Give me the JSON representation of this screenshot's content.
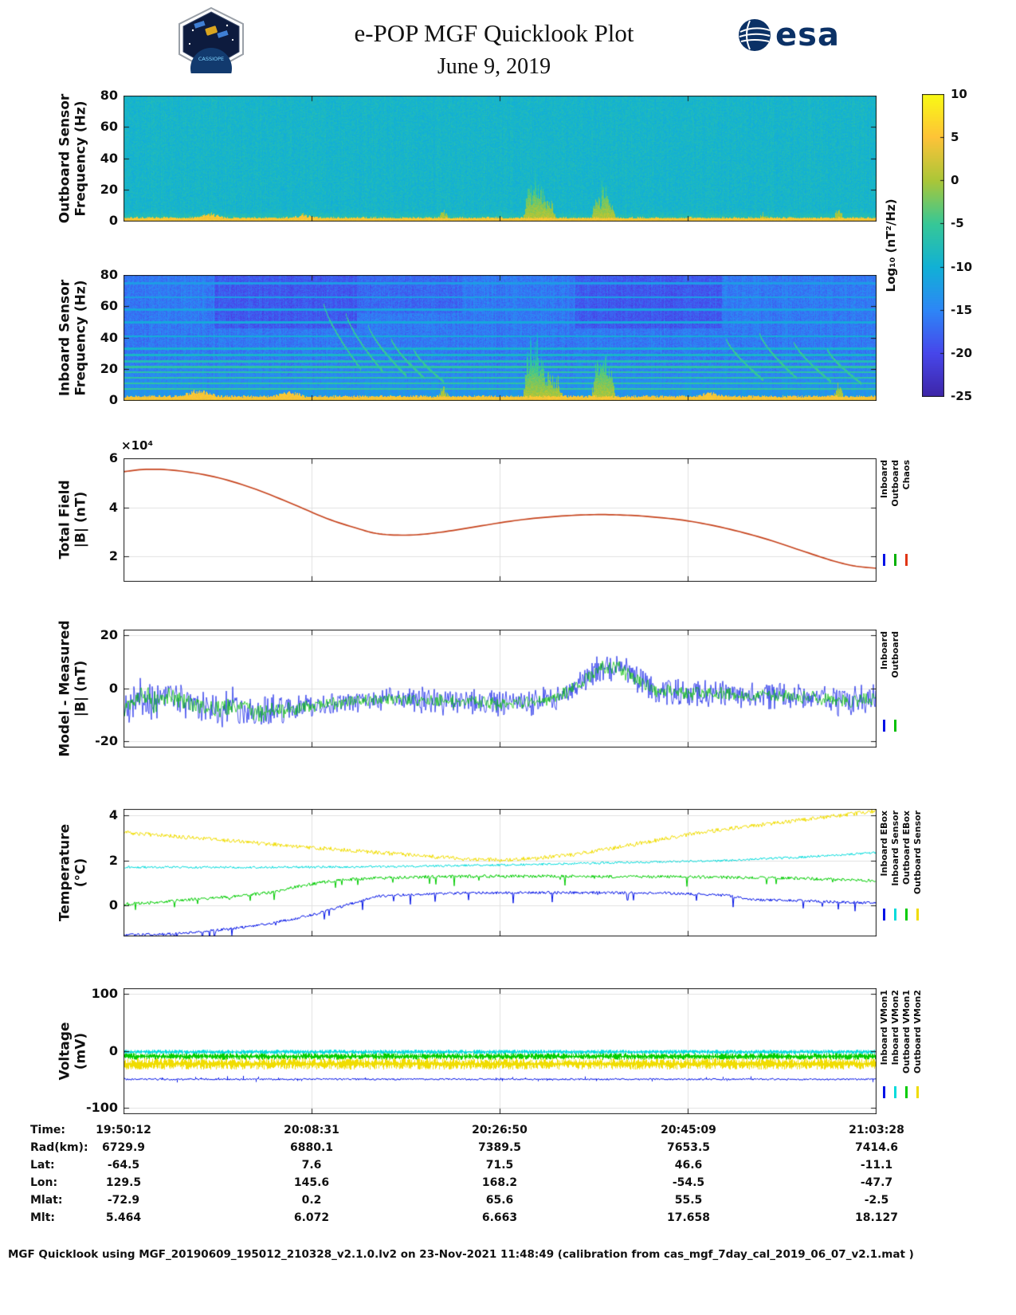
{
  "header": {
    "title": "e-POP MGF Quicklook Plot",
    "date": "June 9, 2019",
    "esa_logo_text": "esa",
    "mission_patch_text": "CASSIOPE"
  },
  "colorbar": {
    "label": "Log₁₀ (nT²/Hz)",
    "ticks": [
      10,
      5,
      0,
      -5,
      -10,
      -15,
      -20,
      -25
    ],
    "range": [
      -25,
      10
    ]
  },
  "panels": [
    {
      "id": "outboard-spectrogram",
      "ylabel1": "Outboard Sensor",
      "ylabel2": "Frequency (Hz)",
      "legend": []
    },
    {
      "id": "inboard-spectrogram",
      "ylabel1": "Inboard Sensor",
      "ylabel2": "Frequency (Hz)",
      "legend": []
    },
    {
      "id": "total-field",
      "ylabel1": "Total Field",
      "ylabel2": "|B| (nT)",
      "legend": [
        {
          "name": "Inboard",
          "color": "#0012e6"
        },
        {
          "name": "Outboard",
          "color": "#00b000"
        },
        {
          "name": "Chaos",
          "color": "#e03515"
        }
      ]
    },
    {
      "id": "model-measured",
      "ylabel1": "Model - Measured",
      "ylabel2": "|B| (nT)",
      "legend": [
        {
          "name": "Inboard",
          "color": "#0012e6"
        },
        {
          "name": "Outboard",
          "color": "#00c000"
        }
      ]
    },
    {
      "id": "temperature",
      "ylabel1": "Temperature",
      "ylabel2": "(°C)",
      "legend": [
        {
          "name": "Inboard EBox",
          "color": "#0012e6"
        },
        {
          "name": "Inboard Sensor",
          "color": "#00dbdb"
        },
        {
          "name": "Outboard EBox",
          "color": "#00cc00"
        },
        {
          "name": "Outboard Sensor",
          "color": "#f0dc00"
        }
      ]
    },
    {
      "id": "voltage",
      "ylabel1": "Voltage",
      "ylabel2": "(mV)",
      "legend": [
        {
          "name": "Inboard VMon1",
          "color": "#0012e6"
        },
        {
          "name": "Inboard VMon2",
          "color": "#00dbdb"
        },
        {
          "name": "Outboard VMon1",
          "color": "#00cc00"
        },
        {
          "name": "Outboard VMon2",
          "color": "#f0dc00"
        }
      ]
    }
  ],
  "chart_data": [
    {
      "id": "outboard-spectrogram",
      "type": "heatmap",
      "ylabel": "Outboard Sensor Frequency (Hz)",
      "ylim": [
        0,
        80
      ],
      "yticks": [
        0,
        20,
        40,
        60,
        80
      ],
      "clim": [
        -25,
        10
      ],
      "value_label": "Log₁₀ (nT²/Hz)",
      "background_level": -9,
      "background_noise": 1.6,
      "column_jitter": 0.5,
      "lowfreq_rise": {
        "hz": 6,
        "per_hz": 0.55
      },
      "bottom_band": {
        "hz": 2.2,
        "level": 5
      },
      "bottom_bumps": [
        {
          "x": 0.115,
          "hz": 4
        },
        {
          "x": 0.24,
          "hz": 3.5
        }
      ],
      "bursts": [
        {
          "x": 0.115,
          "max_hz": 7
        },
        {
          "x": 0.24,
          "max_hz": 6
        },
        {
          "x": 0.425,
          "max_hz": 8
        },
        {
          "x": 0.54,
          "max_hz": 30
        },
        {
          "x": 0.548,
          "max_hz": 38
        },
        {
          "x": 0.556,
          "max_hz": 26
        },
        {
          "x": 0.566,
          "max_hz": 18
        },
        {
          "x": 0.63,
          "max_hz": 22
        },
        {
          "x": 0.638,
          "max_hz": 30
        },
        {
          "x": 0.646,
          "max_hz": 16
        },
        {
          "x": 0.85,
          "max_hz": 6
        },
        {
          "x": 0.95,
          "max_hz": 9
        }
      ],
      "seed": 7
    },
    {
      "id": "inboard-spectrogram",
      "type": "heatmap",
      "ylabel": "Inboard Sensor Frequency (Hz)",
      "ylim": [
        0,
        80
      ],
      "yticks": [
        0,
        20,
        40,
        60,
        80
      ],
      "clim": [
        -25,
        10
      ],
      "background_level": -16,
      "background_noise": 1.8,
      "column_jitter": 1.0,
      "lowfreq_rise": {
        "hz": 28,
        "per_hz": 0.12
      },
      "dark_patches": [
        {
          "x0": 0.12,
          "x1": 0.31,
          "f0": 46,
          "f1": 80,
          "dv": -2.6
        },
        {
          "x0": 0.6,
          "x1": 0.795,
          "f0": 46,
          "f1": 80,
          "dv": -2.6
        },
        {
          "x0": 0.31,
          "x1": 0.45,
          "f0": 56,
          "f1": 80,
          "dv": -1.4
        }
      ],
      "harmonic_lines": [
        {
          "hz": 7.5,
          "level": -5.5
        },
        {
          "hz": 11,
          "level": -6
        },
        {
          "hz": 14.5,
          "level": -6
        },
        {
          "hz": 18,
          "level": -6.5
        },
        {
          "hz": 21.5,
          "level": -6
        },
        {
          "hz": 25,
          "level": -7.5
        },
        {
          "hz": 29,
          "level": -9
        },
        {
          "hz": 33,
          "level": -9.5
        },
        {
          "hz": 41,
          "level": -10.5
        },
        {
          "hz": 50,
          "level": -11
        },
        {
          "hz": 58,
          "level": -11.5
        },
        {
          "hz": 66,
          "level": -12
        },
        {
          "hz": 75,
          "level": -12.5
        }
      ],
      "sweeps": [
        {
          "x0": 0.265,
          "dx": 0.05,
          "f0": 63,
          "f1": 20
        },
        {
          "x0": 0.295,
          "dx": 0.05,
          "f0": 56,
          "f1": 18
        },
        {
          "x0": 0.325,
          "dx": 0.05,
          "f0": 48,
          "f1": 16
        },
        {
          "x0": 0.355,
          "dx": 0.045,
          "f0": 40,
          "f1": 14
        },
        {
          "x0": 0.385,
          "dx": 0.04,
          "f0": 33,
          "f1": 12
        },
        {
          "x0": 0.8,
          "dx": 0.05,
          "f0": 40,
          "f1": 13
        },
        {
          "x0": 0.845,
          "dx": 0.05,
          "f0": 43,
          "f1": 14
        },
        {
          "x0": 0.89,
          "dx": 0.05,
          "f0": 38,
          "f1": 12
        },
        {
          "x0": 0.935,
          "dx": 0.045,
          "f0": 33,
          "f1": 11
        }
      ],
      "bottom_band": {
        "hz": 2.8,
        "level": 5
      },
      "bottom_bumps": [
        {
          "x": 0.1,
          "hz": 6
        },
        {
          "x": 0.22,
          "hz": 5
        },
        {
          "x": 0.78,
          "hz": 4.5
        }
      ],
      "bursts": [
        {
          "x": 0.54,
          "max_hz": 42
        },
        {
          "x": 0.548,
          "max_hz": 50
        },
        {
          "x": 0.556,
          "max_hz": 34
        },
        {
          "x": 0.566,
          "max_hz": 24
        },
        {
          "x": 0.576,
          "max_hz": 18
        },
        {
          "x": 0.63,
          "max_hz": 30
        },
        {
          "x": 0.638,
          "max_hz": 40
        },
        {
          "x": 0.646,
          "max_hz": 22
        },
        {
          "x": 0.425,
          "max_hz": 10
        },
        {
          "x": 0.95,
          "max_hz": 12
        }
      ],
      "seed": 13
    },
    {
      "id": "total-field",
      "type": "line",
      "ylabel": "Total Field |B| (nT)",
      "y_scale_label": "×10⁴",
      "ylim": [
        1,
        6
      ],
      "yticks": [
        2,
        4,
        6
      ],
      "x": [
        0,
        0.03,
        0.07,
        0.12,
        0.17,
        0.22,
        0.27,
        0.31,
        0.34,
        0.38,
        0.42,
        0.47,
        0.52,
        0.57,
        0.62,
        0.66,
        0.7,
        0.75,
        0.8,
        0.85,
        0.9,
        0.94,
        0.97,
        1.0
      ],
      "y_units_1e4_nT": [
        5.45,
        5.55,
        5.5,
        5.25,
        4.8,
        4.2,
        3.55,
        3.15,
        2.92,
        2.87,
        2.98,
        3.22,
        3.46,
        3.62,
        3.7,
        3.69,
        3.62,
        3.45,
        3.15,
        2.75,
        2.25,
        1.85,
        1.62,
        1.52
      ],
      "series": [
        {
          "name": "Inboard",
          "color": "#0012e6"
        },
        {
          "name": "Outboard",
          "color": "#00b000"
        },
        {
          "name": "Chaos",
          "color": "#c6431c"
        }
      ],
      "note": "Inboard, Outboard and Chaos curves overlap; Chaos drawn on top",
      "seed": 3
    },
    {
      "id": "model-measured",
      "type": "noisy_line",
      "ylabel": "Model - Measured |B| (nT)",
      "ylim": [
        -22,
        22
      ],
      "yticks": [
        -20,
        0,
        20
      ],
      "base_x": [
        0,
        0.02,
        0.04,
        0.06,
        0.09,
        0.12,
        0.15,
        0.18,
        0.21,
        0.25,
        0.3,
        0.35,
        0.4,
        0.45,
        0.5,
        0.55,
        0.58,
        0.61,
        0.63,
        0.655,
        0.68,
        0.71,
        0.75,
        0.8,
        0.85,
        0.9,
        0.95,
        1.0
      ],
      "base_y": [
        -8,
        -3,
        -5,
        -3,
        -6,
        -8,
        -7,
        -9,
        -8,
        -7,
        -5,
        -4,
        -5,
        -5,
        -6,
        -5,
        -3,
        2,
        7,
        8,
        4,
        -1,
        -2,
        -2,
        -3,
        -3,
        -5,
        -4
      ],
      "amp_env_x": [
        0,
        0.04,
        0.08,
        0.15,
        0.22,
        0.3,
        0.4,
        0.5,
        0.6,
        0.65,
        0.7,
        0.8,
        0.9,
        1
      ],
      "amp_env_y": [
        1.3,
        1.5,
        1.1,
        1.3,
        1.0,
        0.75,
        0.9,
        0.85,
        0.8,
        1.1,
        1.0,
        0.9,
        0.85,
        1.0
      ],
      "series": [
        {
          "name": "Inboard",
          "color": "#0012e6",
          "noise_amp": 6.5
        },
        {
          "name": "Outboard",
          "color": "#00c000",
          "noise_amp": 3.2
        }
      ],
      "seed": 21
    },
    {
      "id": "temperature",
      "type": "noisy_line_multi",
      "ylabel": "Temperature (°C)",
      "ylim": [
        -1.35,
        4.3
      ],
      "yticks": [
        0,
        2,
        4
      ],
      "series": [
        {
          "name": "Inboard EBox",
          "color": "#0012e6",
          "noise_amp": 0.06,
          "spike_prob": 0.03,
          "spike_depth": 0.45,
          "x": [
            0,
            0.06,
            0.1,
            0.14,
            0.18,
            0.22,
            0.26,
            0.3,
            0.34,
            0.45,
            0.6,
            0.72,
            0.8,
            0.84,
            0.92,
            1.0
          ],
          "y": [
            -1.32,
            -1.28,
            -1.18,
            -1.05,
            -0.88,
            -0.65,
            -0.35,
            0.05,
            0.42,
            0.55,
            0.57,
            0.55,
            0.45,
            0.25,
            0.18,
            0.1
          ]
        },
        {
          "name": "Inboard Sensor",
          "color": "#00dbdb",
          "noise_amp": 0.05,
          "spike_prob": 0,
          "spike_depth": 0,
          "x": [
            0,
            0.2,
            0.35,
            0.5,
            0.65,
            0.8,
            0.9,
            1.0
          ],
          "y": [
            1.7,
            1.7,
            1.72,
            1.8,
            1.9,
            2.0,
            2.15,
            2.35
          ]
        },
        {
          "name": "Outboard EBox",
          "color": "#00cc00",
          "noise_amp": 0.07,
          "spike_prob": 0.025,
          "spike_depth": 0.4,
          "x": [
            0,
            0.05,
            0.1,
            0.15,
            0.2,
            0.24,
            0.28,
            0.32,
            0.4,
            0.5,
            0.6,
            0.7,
            0.8,
            0.9,
            1.0
          ],
          "y": [
            0.05,
            0.15,
            0.3,
            0.4,
            0.6,
            0.9,
            1.1,
            1.2,
            1.27,
            1.3,
            1.3,
            1.28,
            1.25,
            1.2,
            1.1
          ]
        },
        {
          "name": "Outboard Sensor",
          "color": "#f0dc00",
          "noise_amp": 0.09,
          "spike_prob": 0,
          "spike_depth": 0,
          "x": [
            0,
            0.1,
            0.2,
            0.3,
            0.4,
            0.45,
            0.5,
            0.55,
            0.6,
            0.65,
            0.7,
            0.75,
            0.8,
            0.85,
            0.9,
            0.95,
            1.0
          ],
          "y": [
            3.25,
            3.0,
            2.72,
            2.45,
            2.2,
            2.08,
            2.02,
            2.1,
            2.28,
            2.55,
            2.85,
            3.15,
            3.4,
            3.6,
            3.8,
            4.0,
            4.2
          ]
        }
      ],
      "seed": 31
    },
    {
      "id": "voltage",
      "type": "noise_band",
      "ylabel": "Voltage (mV)",
      "ylim": [
        -110,
        110
      ],
      "yticks": [
        -100,
        0,
        100
      ],
      "series": [
        {
          "name": "Inboard VMon1",
          "color": "#0012e6",
          "style": "line",
          "base": -50,
          "amp": 1.5,
          "spike_prob": 0.03,
          "spike_amp": 6
        },
        {
          "name": "Inboard VMon2",
          "color": "#00dbdb",
          "style": "band",
          "base": -2,
          "amp": 4,
          "spike_prob": 0.01,
          "spike_amp": 6
        },
        {
          "name": "Outboard VMon1",
          "color": "#00cc00",
          "style": "band",
          "base": -10,
          "amp": 6,
          "spike_prob": 0.01,
          "spike_amp": 8
        },
        {
          "name": "Outboard VMon2",
          "color": "#f0dc00",
          "style": "band",
          "base": -23,
          "amp": 10,
          "spike_prob": 0.01,
          "spike_amp": 10
        }
      ],
      "draw_order": [
        1,
        2,
        3,
        0
      ],
      "seed": 41
    }
  ],
  "table": {
    "rows": [
      {
        "label": "Time:",
        "values": [
          "19:50:12",
          "20:08:31",
          "20:26:50",
          "20:45:09",
          "21:03:28"
        ]
      },
      {
        "label": "Rad(km):",
        "values": [
          "6729.9",
          "6880.1",
          "7389.5",
          "7653.5",
          "7414.6"
        ]
      },
      {
        "label": "Lat:",
        "values": [
          "-64.5",
          "7.6",
          "71.5",
          "46.6",
          "-11.1"
        ]
      },
      {
        "label": "Lon:",
        "values": [
          "129.5",
          "145.6",
          "168.2",
          "-54.5",
          "-47.7"
        ]
      },
      {
        "label": "Mlat:",
        "values": [
          "-72.9",
          "0.2",
          "65.6",
          "55.5",
          "-2.5"
        ]
      },
      {
        "label": "Mlt:",
        "values": [
          "5.464",
          "6.072",
          "6.663",
          "17.658",
          "18.127"
        ]
      }
    ]
  },
  "footer": {
    "text": "MGF Quicklook using MGF_20190609_195012_210328_v2.1.0.lv2 on 23-Nov-2021 11:48:49 (calibration from cas_mgf_7day_cal_2019_06_07_v2.1.mat )"
  }
}
